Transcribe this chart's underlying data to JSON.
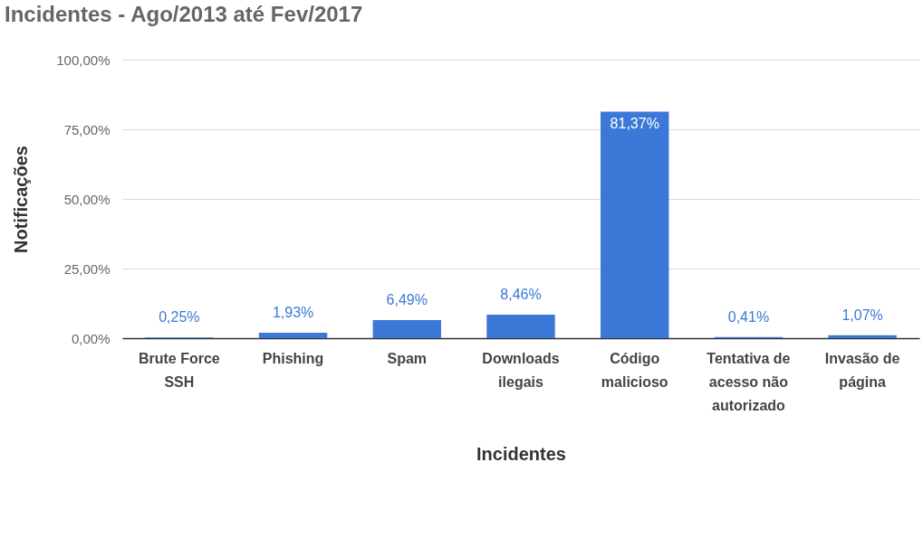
{
  "chart_data": {
    "type": "bar",
    "title": "Incidentes - Ago/2013 até Fev/2017",
    "xlabel": "Incidentes",
    "ylabel": "Notificações",
    "categories": [
      "Brute Force SSH",
      "Phishing",
      "Spam",
      "Downloads ilegais",
      "Código malicioso",
      "Tentativa de acesso não autorizado",
      "Invasão de página"
    ],
    "values": [
      0.25,
      1.93,
      6.49,
      8.46,
      81.37,
      0.41,
      1.07
    ],
    "value_labels": [
      "0,25%",
      "1,93%",
      "6,49%",
      "8,46%",
      "81,37%",
      "0,41%",
      "1,07%"
    ],
    "color": "#3c78d8",
    "ylim": [
      0,
      100
    ],
    "yticks": [
      {
        "value": 0,
        "label": "0,00%"
      },
      {
        "value": 25,
        "label": "25,00%"
      },
      {
        "value": 50,
        "label": "50,00%"
      },
      {
        "value": 75,
        "label": "75,00%"
      },
      {
        "value": 100,
        "label": "100,00%"
      }
    ],
    "grid": true
  }
}
